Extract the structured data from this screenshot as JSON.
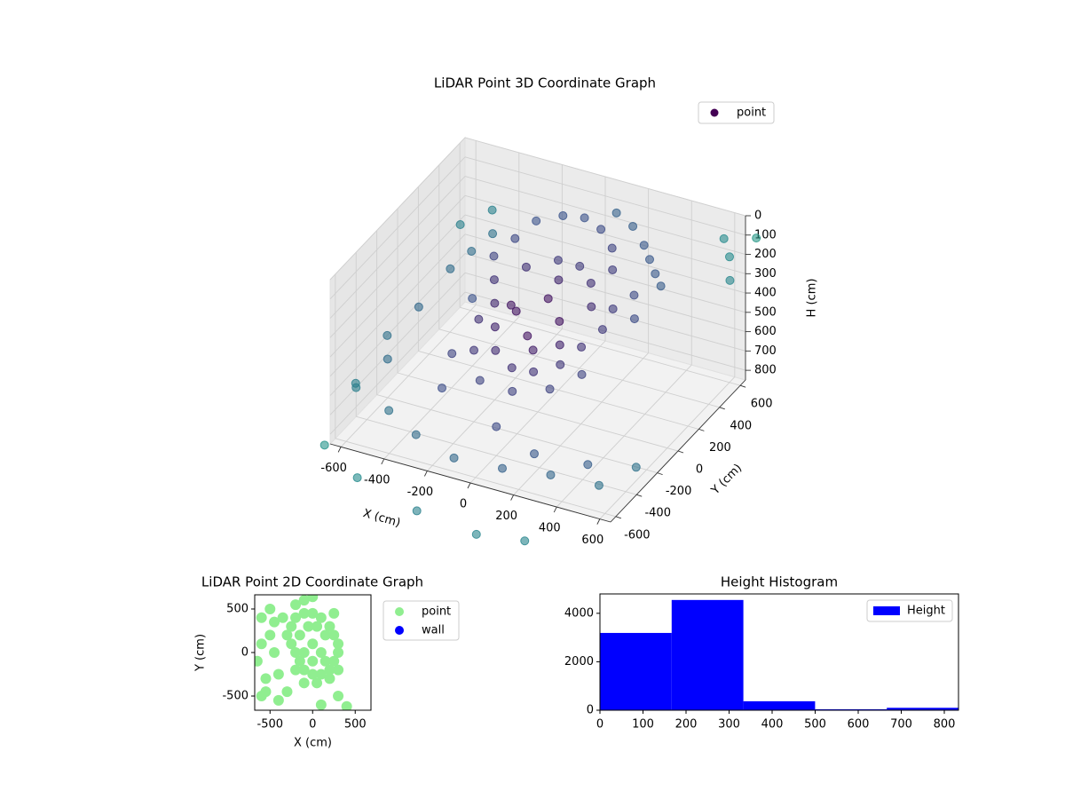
{
  "chart_data": [
    {
      "type": "scatter3d",
      "title": "LiDAR Point 3D Coordinate Graph",
      "xlabel": "X (cm)",
      "ylabel": "Y (cm)",
      "zlabel": "H (cm)",
      "xlim": [
        -650,
        650
      ],
      "ylim": [
        -650,
        650
      ],
      "zlim": [
        0,
        850
      ],
      "zinverted": true,
      "xticks": [
        -600,
        -400,
        -200,
        0,
        200,
        400,
        600
      ],
      "yticks": [
        -600,
        -400,
        -200,
        0,
        200,
        400,
        600
      ],
      "zticks": [
        0,
        100,
        200,
        300,
        400,
        500,
        600,
        700,
        800
      ],
      "grid": true,
      "legend": "upper right",
      "cmap": "viridis",
      "series": [
        {
          "name": "point",
          "color": "#440154",
          "x": [
            -250,
            -200,
            -100,
            0,
            100,
            200,
            250,
            -300,
            -250,
            -200,
            -150,
            -100,
            0,
            100,
            200,
            250,
            300,
            300,
            -50,
            50,
            150,
            -150,
            0,
            100,
            -100,
            0,
            150,
            -200,
            -100,
            50,
            200,
            300,
            350,
            400,
            450,
            350,
            400,
            300,
            200,
            100,
            -100,
            0,
            200,
            -250,
            50,
            -650,
            -600,
            -550,
            -500,
            -650,
            -700,
            -600,
            -450,
            -300,
            -100,
            100,
            300,
            500,
            600,
            -400,
            -350,
            -300,
            0,
            200,
            400,
            -700,
            -500,
            -200,
            100,
            300,
            600,
            650,
            550,
            700,
            -500,
            -450,
            -600
          ],
          "y": [
            300,
            400,
            450,
            450,
            400,
            300,
            200,
            200,
            100,
            0,
            -100,
            -200,
            -250,
            -250,
            -200,
            -100,
            0,
            100,
            300,
            300,
            200,
            200,
            100,
            0,
            0,
            -100,
            -100,
            -200,
            -350,
            -350,
            -300,
            -200,
            350,
            300,
            250,
            200,
            100,
            400,
            500,
            550,
            -50,
            200,
            100,
            -50,
            -150,
            -100,
            100,
            300,
            400,
            -400,
            -300,
            -200,
            -500,
            -550,
            -600,
            -550,
            -500,
            -450,
            -300,
            200,
            -100,
            -300,
            -400,
            -450,
            -350,
            -600,
            -700,
            -750,
            -800,
            -750,
            600,
            500,
            650,
            650,
            600,
            500,
            500
          ],
          "z": [
            200,
            150,
            120,
            100,
            100,
            110,
            150,
            250,
            300,
            350,
            400,
            450,
            480,
            470,
            430,
            380,
            330,
            280,
            250,
            250,
            250,
            260,
            320,
            350,
            360,
            400,
            400,
            480,
            520,
            530,
            500,
            450,
            150,
            180,
            200,
            250,
            300,
            120,
            110,
            100,
            300,
            280,
            300,
            420,
            430,
            600,
            550,
            450,
            400,
            700,
            750,
            650,
            700,
            750,
            780,
            800,
            800,
            820,
            780,
            500,
            600,
            650,
            700,
            750,
            800,
            900,
            950,
            1000,
            1000,
            1000,
            200,
            250,
            150,
            100,
            300,
            350,
            350
          ]
        }
      ]
    },
    {
      "type": "scatter",
      "title": "LiDAR Point 2D Coordinate Graph",
      "xlabel": "X (cm)",
      "ylabel": "Y (cm)",
      "xlim": [
        -680,
        685
      ],
      "ylim": [
        -663,
        663
      ],
      "xticks": [
        -500,
        0,
        500
      ],
      "yticks": [
        -500,
        0,
        500
      ],
      "legend": "outside right",
      "series": [
        {
          "name": "point",
          "color": "#90ee90",
          "x": [
            -250,
            -200,
            -100,
            0,
            100,
            200,
            250,
            -300,
            -250,
            -200,
            -150,
            -100,
            0,
            100,
            200,
            250,
            300,
            300,
            -50,
            50,
            150,
            -150,
            0,
            100,
            -100,
            0,
            150,
            -200,
            -100,
            50,
            200,
            300,
            -600,
            -650,
            -600,
            -500,
            -550,
            -450,
            -400,
            -350,
            -300,
            0,
            -100,
            100,
            300,
            400,
            250,
            -200,
            -500,
            -600,
            -550,
            -400,
            -450
          ],
          "y": [
            300,
            400,
            450,
            450,
            400,
            300,
            200,
            200,
            100,
            0,
            -100,
            -200,
            -250,
            -250,
            -200,
            -100,
            0,
            100,
            300,
            300,
            200,
            200,
            100,
            0,
            0,
            -100,
            -100,
            -200,
            -350,
            -350,
            -300,
            -200,
            400,
            -100,
            -500,
            200,
            -300,
            0,
            -550,
            400,
            -450,
            640,
            600,
            -600,
            -500,
            -620,
            450,
            550,
            500,
            100,
            -450,
            -250,
            350
          ]
        },
        {
          "name": "wall",
          "color": "#0000ff",
          "x": [],
          "y": []
        }
      ]
    },
    {
      "type": "histogram",
      "title": "Height Histogram",
      "bins": [
        0,
        166.6,
        333.2,
        499.8,
        666.4,
        833
      ],
      "xlim": [
        0,
        833
      ],
      "ylim": [
        0,
        4800
      ],
      "xticks": [
        0,
        100,
        200,
        300,
        400,
        500,
        600,
        700,
        800
      ],
      "yticks": [
        0,
        2000,
        4000
      ],
      "legend": "upper right",
      "series": [
        {
          "name": "Height",
          "color": "#0000ff",
          "values": [
            3190,
            4550,
            370,
            40,
            100
          ]
        }
      ]
    }
  ]
}
